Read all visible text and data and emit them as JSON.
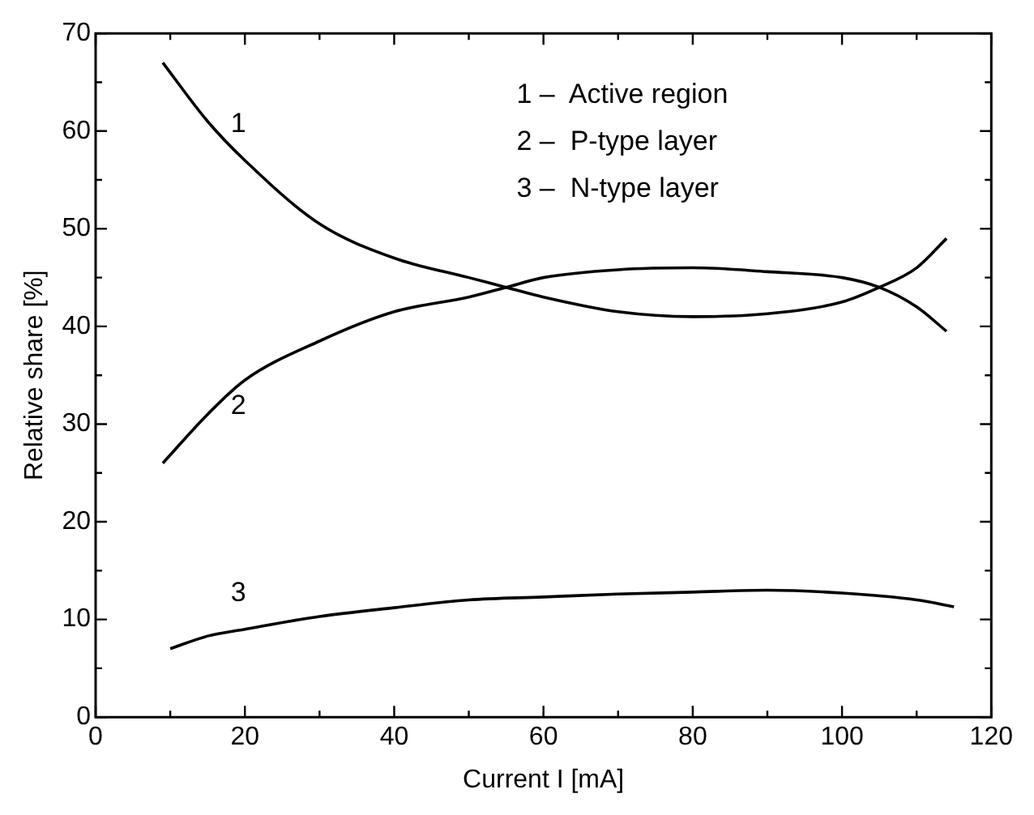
{
  "chart_data": {
    "type": "line",
    "xlabel": "Current I [mA]",
    "ylabel": "Relative share [%]",
    "xlim": [
      0,
      120
    ],
    "xticks": [
      0,
      20,
      40,
      60,
      80,
      100,
      120
    ],
    "ylim": [
      0,
      70
    ],
    "yticks": [
      0,
      10,
      20,
      30,
      40,
      50,
      60,
      70
    ],
    "grid": false,
    "legend": false,
    "marker": "none",
    "line_style": "solid",
    "annotations": [
      "1 –  Active region",
      "2 –  P-type layer",
      "3 –  N-type layer"
    ],
    "series": [
      {
        "name": "1",
        "color": "#000000",
        "x": [
          9,
          15,
          20,
          30,
          40,
          50,
          55,
          60,
          70,
          80,
          90,
          100,
          105,
          110,
          114
        ],
        "values": [
          67,
          61,
          57,
          50.5,
          47,
          45,
          44,
          43,
          41.5,
          41,
          41.3,
          42.5,
          44,
          46,
          49
        ]
      },
      {
        "name": "2",
        "color": "#000000",
        "x": [
          9,
          15,
          20,
          30,
          40,
          50,
          55,
          60,
          70,
          80,
          90,
          100,
          105,
          110,
          114
        ],
        "values": [
          26,
          31,
          34.5,
          38.5,
          41.5,
          43,
          44,
          45,
          45.8,
          46,
          45.6,
          45,
          44,
          42,
          39.5
        ]
      },
      {
        "name": "3",
        "color": "#000000",
        "x": [
          10,
          15,
          20,
          30,
          40,
          50,
          60,
          70,
          80,
          90,
          100,
          110,
          115
        ],
        "values": [
          7,
          8.3,
          9,
          10.3,
          11.2,
          12,
          12.3,
          12.6,
          12.8,
          13,
          12.7,
          12,
          11.3
        ]
      }
    ]
  }
}
